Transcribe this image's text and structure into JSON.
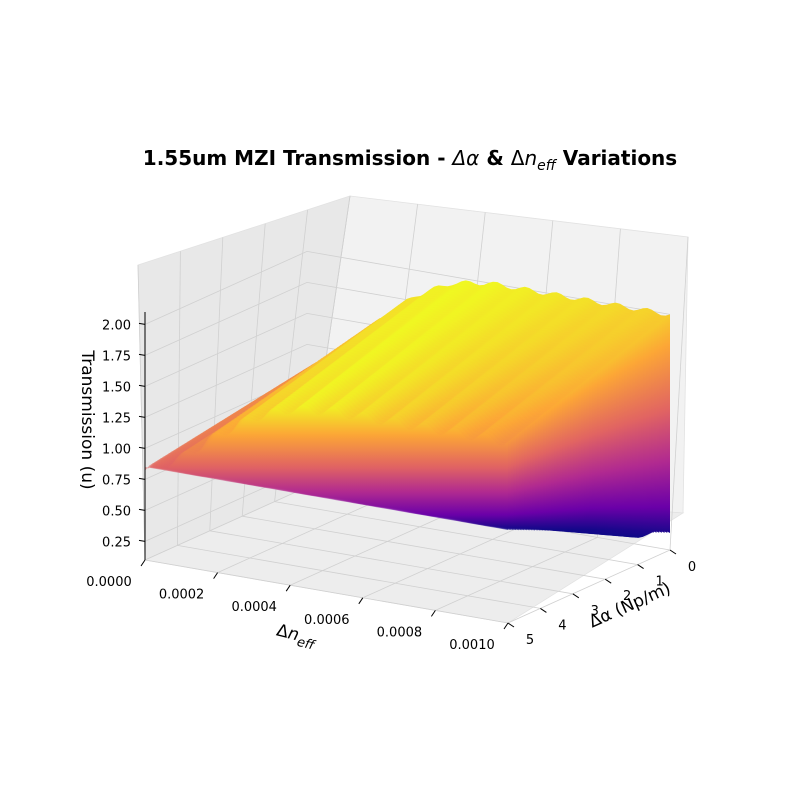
{
  "chart_data": {
    "type": "surface3d",
    "title": "1.55um MZI Transmission - Δα & Δn_eff Variations",
    "title_parts": {
      "lead": "1.55um MZI Transmission - ",
      "alpha": "Δα",
      "amp": " & ",
      "delta": "Δ",
      "n": "n",
      "sub": "eff",
      "tail": " Variations"
    },
    "x_axis": {
      "label_parts": {
        "delta": "Δ",
        "n": "n",
        "sub": "eff"
      },
      "range": [
        0,
        0.001
      ],
      "ticks": [
        "0.0000",
        "0.0002",
        "0.0004",
        "0.0006",
        "0.0008",
        "0.0010"
      ]
    },
    "y_axis": {
      "label": "Δα (Np/m)",
      "range": [
        0,
        5
      ],
      "ticks": [
        "0",
        "1",
        "2",
        "3",
        "4",
        "5"
      ]
    },
    "z_axis": {
      "label": "Transmission (u)",
      "range": [
        0.1,
        2.1
      ],
      "ticks": [
        "0.25",
        "0.50",
        "0.75",
        "1.00",
        "1.25",
        "1.50",
        "1.75",
        "2.00"
      ]
    },
    "colormap": "plasma",
    "colormap_stops": [
      "#0d0887",
      "#6a00a8",
      "#b12a90",
      "#e16462",
      "#fca636",
      "#f0f921"
    ],
    "grid": true,
    "surface_profile": {
      "x_fraction": [
        0.0,
        0.1,
        0.2,
        0.3,
        0.4,
        0.5,
        0.6,
        0.7,
        0.8,
        0.9,
        1.0
      ],
      "top_z": [
        1.05,
        1.25,
        1.55,
        1.8,
        1.95,
        2.0,
        2.0,
        2.0,
        2.0,
        2.0,
        2.0
      ],
      "floor_z_at_zero_alpha": 0.2,
      "floor_z_at_max_alpha": 0.85,
      "ripple_count": 12
    }
  }
}
